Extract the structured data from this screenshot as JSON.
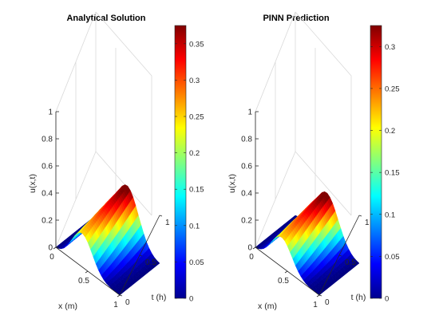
{
  "chart_data": [
    {
      "type": "surface",
      "title": "Analytical Solution",
      "xlabel": "x (m)",
      "ylabel": "t (h)",
      "zlabel": "u(x,t)",
      "xlim": [
        0,
        1
      ],
      "ylim": [
        0,
        1
      ],
      "zlim": [
        0,
        1
      ],
      "x_ticks": [
        "0",
        "0.5",
        "1"
      ],
      "y_ticks": [
        "0",
        "0.5",
        "1"
      ],
      "z_ticks": [
        "0",
        "0.2",
        "0.4",
        "0.6",
        "0.8",
        "1"
      ],
      "colormap": "jet",
      "colorbar": {
        "limits": [
          0,
          0.375
        ],
        "ticks": [
          "0",
          "0.05",
          "0.1",
          "0.15",
          "0.2",
          "0.25",
          "0.3",
          "0.35"
        ]
      },
      "peak_value": 0.375,
      "ridge_start_value": 0.25
    },
    {
      "type": "surface",
      "title": "PINN Prediction",
      "xlabel": "x (m)",
      "ylabel": "t (h)",
      "zlabel": "u(x,t)",
      "xlim": [
        0,
        1
      ],
      "ylim": [
        0,
        1
      ],
      "zlim": [
        0,
        1
      ],
      "x_ticks": [
        "0",
        "0.5",
        "1"
      ],
      "y_ticks": [
        "0",
        "0.5",
        "1"
      ],
      "z_ticks": [
        "0",
        "0.2",
        "0.4",
        "0.6",
        "0.8",
        "1"
      ],
      "colormap": "jet",
      "colorbar": {
        "limits": [
          0,
          0.325
        ],
        "ticks": [
          "0",
          "0.05",
          "0.1",
          "0.15",
          "0.2",
          "0.25",
          "0.3"
        ]
      },
      "peak_value": 0.325,
      "ridge_start_value": 0.22
    }
  ]
}
